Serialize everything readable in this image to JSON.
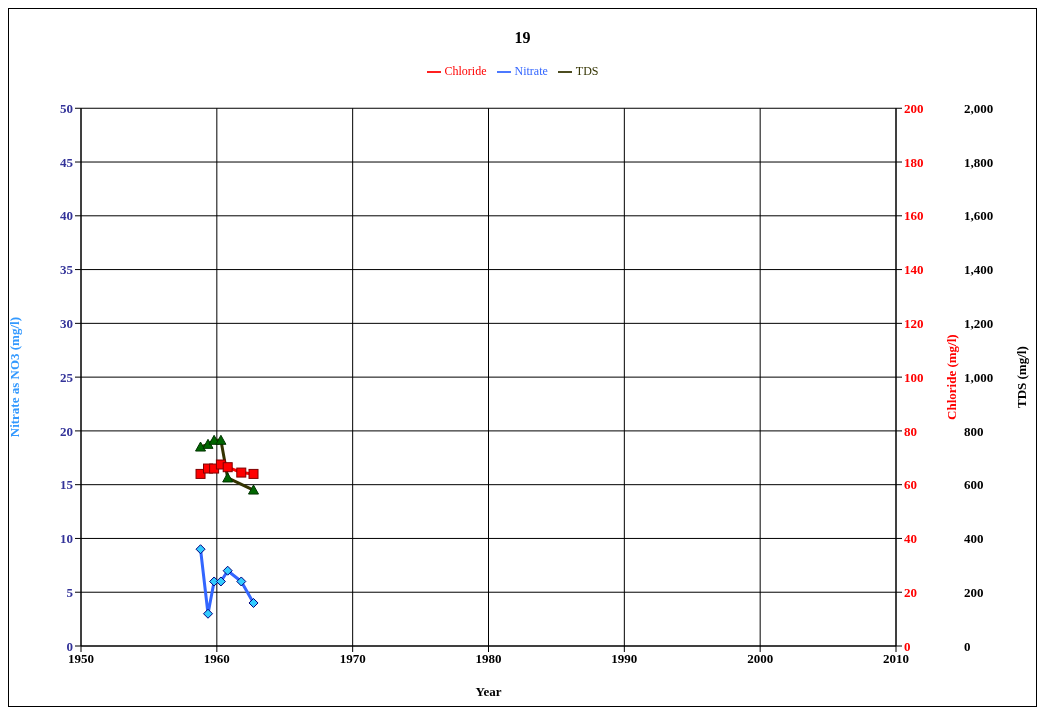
{
  "chart_data": {
    "type": "line",
    "title": "19",
    "xlabel": "Year",
    "ylabel": "Nitrate as NO3 (mg/l)",
    "y2label": "Chloride (mg/l)",
    "y3label": "TDS (mg/l)",
    "xlim": [
      1950,
      2010
    ],
    "xticks": [
      1950,
      1960,
      1970,
      1980,
      1990,
      2000,
      2010
    ],
    "ylim": [
      0,
      50
    ],
    "yticks": [
      0,
      5,
      10,
      15,
      20,
      25,
      30,
      35,
      40,
      45,
      50
    ],
    "y2lim": [
      0,
      200
    ],
    "y2ticks": [
      0,
      20,
      40,
      60,
      80,
      100,
      120,
      140,
      160,
      180,
      200
    ],
    "y3lim": [
      0,
      2000
    ],
    "y3ticks": [
      0,
      200,
      400,
      600,
      800,
      {
        "value": 1000,
        "label": "1,000"
      },
      {
        "value": 1200,
        "label": "1,200"
      },
      {
        "value": 1400,
        "label": "1,400"
      },
      {
        "value": 1600,
        "label": "1,600"
      },
      {
        "value": 1800,
        "label": "1,800"
      },
      {
        "value": 2000,
        "label": "2,000"
      }
    ],
    "grid": true,
    "legend": "top",
    "series": [
      {
        "name": "Nitrate",
        "color": "#3366ff",
        "marker": "diamond",
        "x": [
          1958.8,
          1959.35,
          1959.8,
          1960.3,
          1960.8,
          1961.8,
          1962.7
        ],
        "values": [
          9,
          3,
          6,
          6,
          7,
          6,
          4
        ]
      },
      {
        "name": "Chloride",
        "color": "#ff0000",
        "marker": "square",
        "axis": "y2",
        "x": [
          1958.8,
          1959.35,
          1959.8,
          1960.3,
          1960.8,
          1961.8,
          1962.7
        ],
        "values": [
          64,
          66,
          66,
          67.5,
          66.5,
          64.5,
          64
        ]
      },
      {
        "name": "TDS",
        "color": "#333300",
        "marker": "triangle",
        "axis": "y3",
        "x": [
          1958.8,
          1959.35,
          1959.8,
          1960.3,
          1960.8,
          1962.7
        ],
        "values": [
          740,
          750,
          765,
          765,
          625,
          580
        ]
      }
    ]
  }
}
